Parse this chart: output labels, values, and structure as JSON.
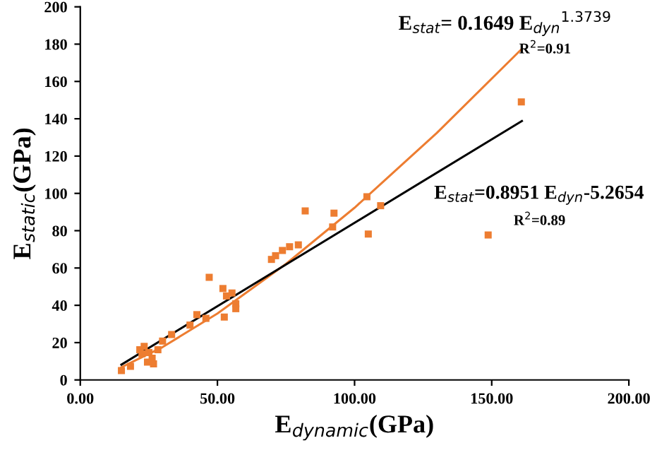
{
  "chart_data": {
    "type": "scatter",
    "xlabel": "E$_{dynamic}$(GPa)",
    "ylabel": "E$_{static}$(GPa)",
    "xlim": [
      0,
      200
    ],
    "ylim": [
      0,
      200
    ],
    "xticks": [
      {
        "value": 0,
        "label": "0.00"
      },
      {
        "value": 50,
        "label": "50.00"
      },
      {
        "value": 100,
        "label": "100.00"
      },
      {
        "value": 150,
        "label": "150.00"
      },
      {
        "value": 200,
        "label": "200.00"
      }
    ],
    "yticks": [
      0,
      20,
      40,
      60,
      80,
      100,
      120,
      140,
      160,
      180,
      200
    ],
    "grid": false,
    "legend": false,
    "marker": "square",
    "series": [
      {
        "color": "#ed7d31",
        "x": [
          15,
          18.3,
          21.7,
          23.3,
          22.5,
          25,
          24.5,
          26.7,
          26.2,
          28.3,
          30,
          33.3,
          40,
          42.5,
          45.8,
          47,
          52,
          52.5,
          53.3,
          55.3,
          56.7,
          56.7,
          69.7,
          71.2,
          73.7,
          76.3,
          79.5,
          82,
          92,
          92.5,
          104.5,
          105,
          109.5,
          160.8,
          148.7
        ],
        "values": [
          5,
          7.3,
          16.2,
          18,
          14,
          14.7,
          9.6,
          8.6,
          11.6,
          16.2,
          20.8,
          24.3,
          29.4,
          35,
          33,
          55,
          49,
          33.7,
          45,
          46.6,
          40.8,
          38.2,
          64.6,
          66.6,
          69.4,
          71.4,
          72.4,
          90.6,
          82,
          89.4,
          98.2,
          78.2,
          93.4,
          149,
          77.7
        ]
      },
      {
        "type": "line",
        "color": "#ed7d31",
        "line_style": "solid",
        "marker": "none",
        "x": [
          15,
          30,
          50,
          75,
          100,
          130,
          161
        ],
        "values": [
          6.8,
          17.6,
          35.6,
          62.2,
          92.3,
          132.4,
          177.5
        ]
      },
      {
        "type": "line",
        "color": "#000000",
        "line_style": "solid",
        "marker": "none",
        "x": [
          15,
          161
        ],
        "values": [
          8.2,
          138.8
        ]
      }
    ],
    "annotations": [
      "E$_{stat}$= 0.1649 E$_{dyn}$$^{1.3739}$",
      "R$^{2}$=0.91",
      "E$_{stat}$=0.8951 E$_{dyn}$-5.2654",
      "R$^{2}$=0.89"
    ]
  }
}
